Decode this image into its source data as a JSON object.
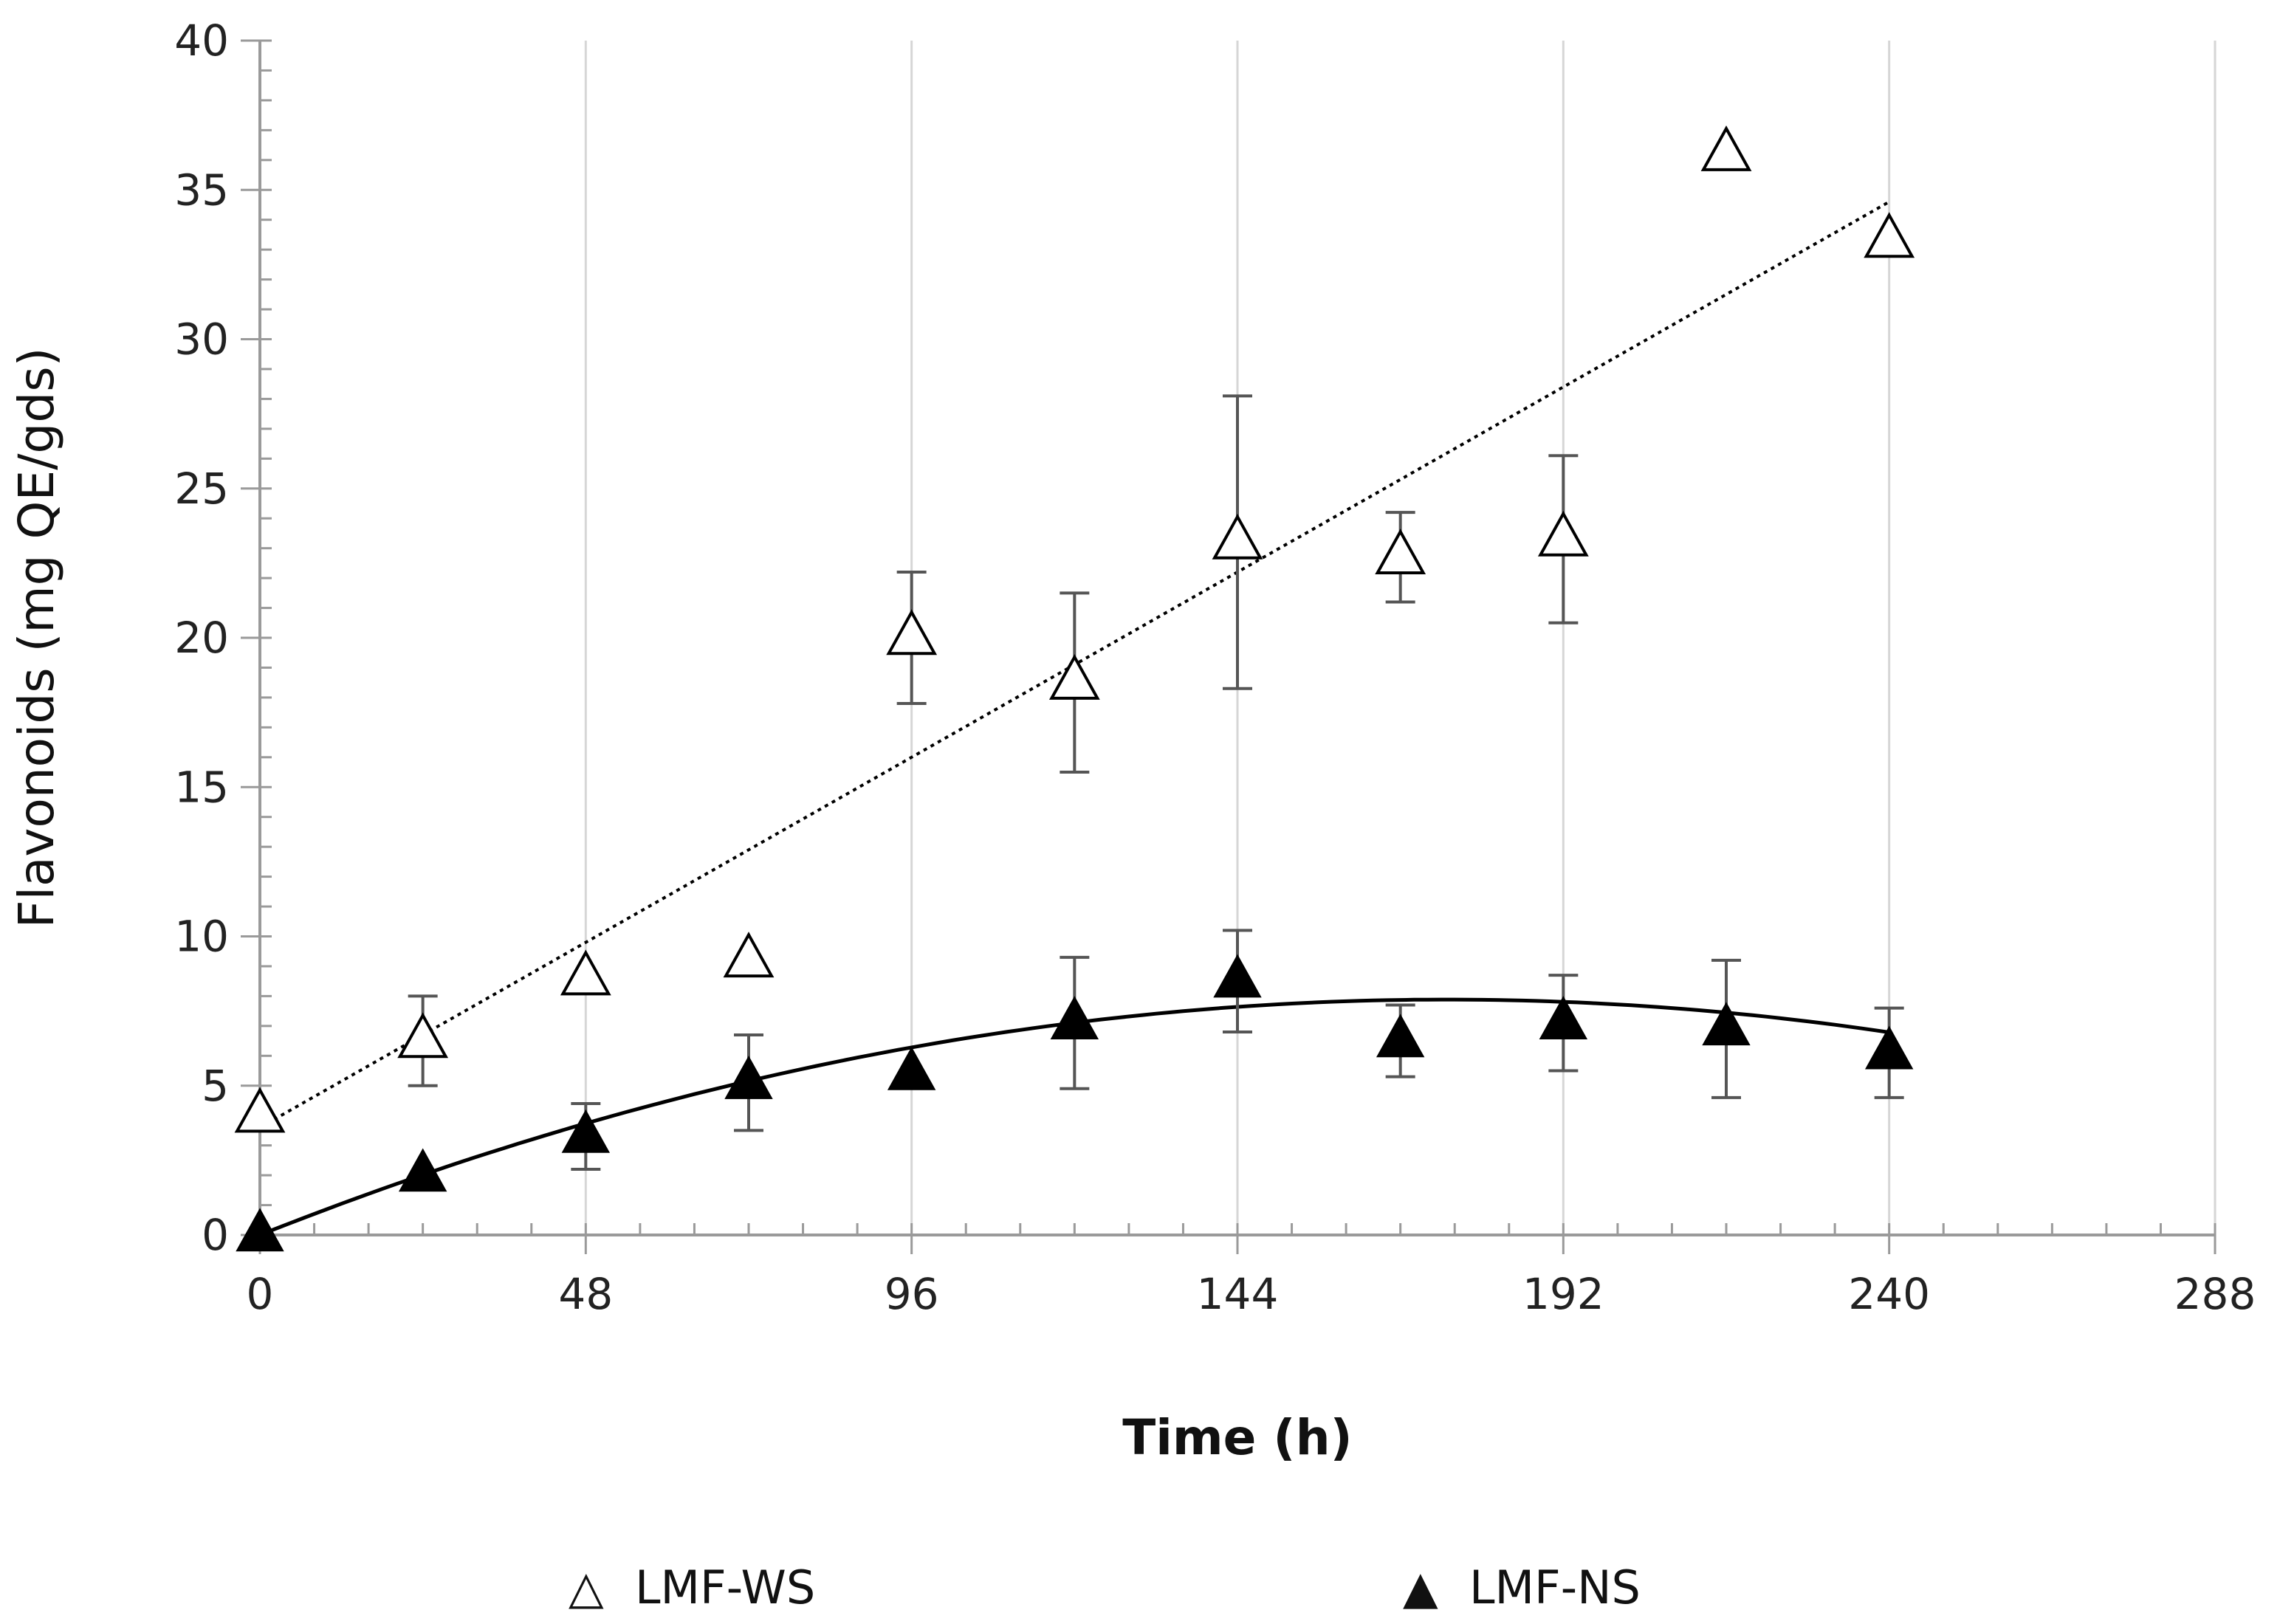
{
  "chart_data": {
    "type": "scatter",
    "title": "",
    "xlabel": "Time (h)",
    "ylabel": "Flavonoids (mg QE/gds)",
    "xlim": [
      0,
      288
    ],
    "ylim": [
      0,
      40
    ],
    "xticks": [
      0,
      48,
      96,
      144,
      192,
      240,
      288
    ],
    "yticks": [
      0,
      5,
      10,
      15,
      20,
      25,
      30,
      35,
      40
    ],
    "x_minor_step": 8,
    "y_minor_step": 1,
    "grid": "x-major",
    "legend_position": "bottom",
    "series": [
      {
        "name": "LMF-WS",
        "marker": "open-triangle",
        "symbol": "△",
        "x": [
          0,
          24,
          48,
          72,
          96,
          120,
          144,
          168,
          192,
          216,
          240
        ],
        "y": [
          4.0,
          6.5,
          8.6,
          9.2,
          20.0,
          18.5,
          23.2,
          22.7,
          23.3,
          36.2,
          33.3
        ],
        "err": [
          0,
          1.5,
          0,
          0,
          2.2,
          3.0,
          4.9,
          1.5,
          2.8,
          0,
          0
        ],
        "trend": {
          "type": "linear",
          "style": "dotted",
          "x": [
            0,
            240
          ],
          "y": [
            3.6,
            34.6
          ]
        }
      },
      {
        "name": "LMF-NS",
        "marker": "filled-triangle",
        "symbol": "▲",
        "x": [
          0,
          24,
          48,
          72,
          96,
          120,
          144,
          168,
          192,
          216,
          240
        ],
        "y": [
          0.0,
          2.0,
          3.3,
          5.1,
          5.4,
          7.1,
          8.5,
          6.5,
          7.1,
          6.9,
          6.1
        ],
        "err": [
          0,
          0,
          1.1,
          1.6,
          0,
          2.2,
          1.7,
          1.2,
          1.6,
          2.3,
          1.5
        ],
        "trend": {
          "type": "polynomial",
          "style": "solid",
          "coefficients": [
            0.0,
            0.0902,
            -0.000258
          ]
        }
      }
    ],
    "colors": {
      "axis": "#9a9a9a",
      "grid": "#d6d6d6",
      "marker": "#000000",
      "errorbar": "#555555",
      "trend": "#000000"
    }
  }
}
